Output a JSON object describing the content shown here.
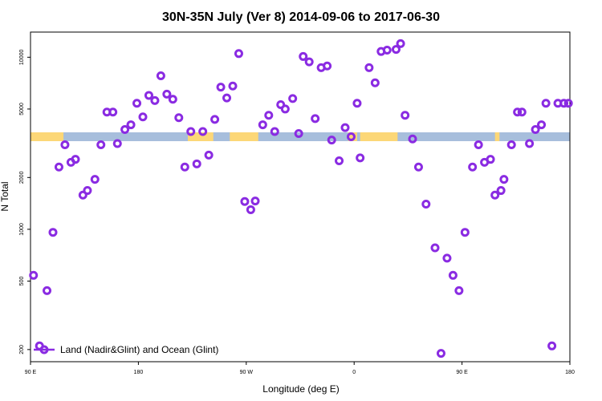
{
  "chart_data": {
    "type": "scatter",
    "title": "30N-35N July (Ver 8)   2014-09-06 to 2017-06-30",
    "xlabel": "Longitude (deg E)",
    "ylabel": "N Total",
    "xlim": [
      0,
      360
    ],
    "ylim": [
      170,
      14000
    ],
    "yscale": "log",
    "x_ticks": [
      {
        "value": 0,
        "label": "90 E"
      },
      {
        "value": 72,
        "label": "180"
      },
      {
        "value": 144,
        "label": "90 W"
      },
      {
        "value": 216,
        "label": "0"
      },
      {
        "value": 288,
        "label": "90 E"
      },
      {
        "value": 360,
        "label": "180"
      }
    ],
    "y_ticks": [
      {
        "value": 200,
        "label": "200"
      },
      {
        "value": 500,
        "label": "500"
      },
      {
        "value": 1000,
        "label": "1000"
      },
      {
        "value": 2000,
        "label": "2000"
      },
      {
        "value": 5000,
        "label": "5000"
      },
      {
        "value": 10000,
        "label": "10000"
      }
    ],
    "legend": {
      "position": "bottom-left",
      "label": "Land (Nadir&Glint) and Ocean (Glint)",
      "color": "#8A2BE2"
    },
    "land_ocean_band": {
      "y_center": 3450,
      "colors": {
        "ocean": "#A7BEDC",
        "land": "#FCD777"
      },
      "land_ranges": [
        [
          0,
          22
        ],
        [
          105,
          122
        ],
        [
          133,
          152
        ],
        [
          212,
          218
        ],
        [
          220,
          245
        ],
        [
          310,
          313
        ]
      ]
    },
    "series": [
      {
        "name": "Land (Nadir&Glint) and Ocean (Glint)",
        "color": "#8A2BE2",
        "x": [
          2,
          6,
          11,
          15,
          19,
          23,
          27,
          30,
          35,
          38,
          43,
          47,
          51,
          55,
          58,
          63,
          67,
          71,
          75,
          79,
          83,
          87,
          91,
          95,
          99,
          103,
          107,
          111,
          115,
          119,
          123,
          127,
          131,
          135,
          139,
          143,
          147,
          150,
          155,
          159,
          163,
          167,
          170,
          175,
          179,
          182,
          186,
          190,
          194,
          198,
          201,
          206,
          210,
          214,
          218,
          220,
          226,
          230,
          234,
          238,
          244,
          247,
          250,
          255,
          259,
          264,
          270,
          274,
          278,
          282,
          286,
          290,
          295,
          299,
          303,
          307,
          310,
          314,
          316,
          321,
          325,
          328,
          333,
          337,
          341,
          344,
          348,
          352,
          356,
          359
        ],
        "y": [
          540,
          210,
          440,
          960,
          2300,
          3100,
          2450,
          2550,
          1580,
          1680,
          1950,
          3100,
          4800,
          4800,
          3150,
          3800,
          4050,
          5400,
          4500,
          6000,
          5600,
          7800,
          6100,
          5700,
          4450,
          2300,
          3700,
          2400,
          3700,
          2700,
          4350,
          6700,
          5800,
          6800,
          10500,
          1450,
          1300,
          1460,
          4050,
          4600,
          3700,
          5300,
          5000,
          5750,
          3600,
          10100,
          9400,
          4400,
          8700,
          8900,
          3300,
          2500,
          3900,
          3450,
          5400,
          2600,
          8700,
          7100,
          10800,
          11000,
          11100,
          12000,
          4600,
          3350,
          2300,
          1400,
          780,
          190,
          680,
          540,
          440,
          960,
          2300,
          3100,
          2450,
          2550,
          1580,
          1680,
          1950,
          3100,
          4800,
          4800,
          3150,
          3800,
          4050,
          5400,
          210,
          5400,
          5400,
          5400
        ]
      }
    ]
  }
}
